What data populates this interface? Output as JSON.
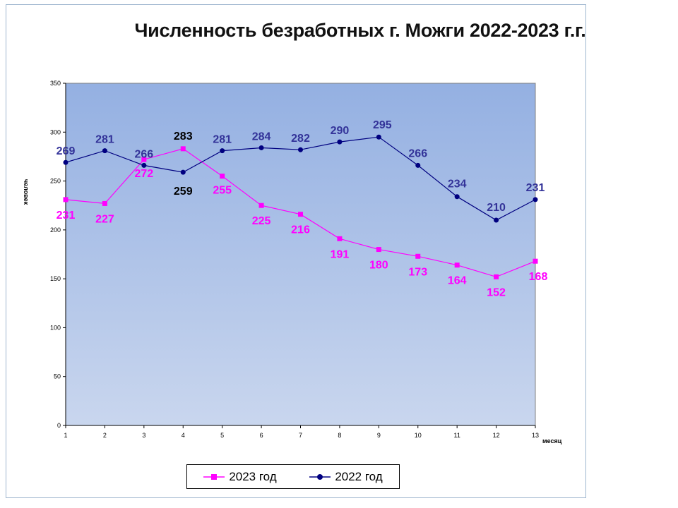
{
  "chart_data": {
    "type": "line",
    "title": "Численность безработных г. Можги  2022-2023 г.г.",
    "xlabel": "месяц",
    "ylabel": "человек",
    "x": [
      1,
      2,
      3,
      4,
      5,
      6,
      7,
      8,
      9,
      10,
      11,
      12,
      13
    ],
    "xlim": [
      1,
      13
    ],
    "ylim": [
      0,
      350
    ],
    "yticks": [
      0,
      50,
      100,
      150,
      200,
      250,
      300,
      350
    ],
    "grid": false,
    "legend_position": "bottom",
    "series": [
      {
        "name": "2023 год",
        "color": "#ff00ff",
        "marker": "square",
        "values": [
          231,
          227,
          272,
          283,
          255,
          225,
          216,
          191,
          180,
          173,
          164,
          152,
          168
        ]
      },
      {
        "name": "2022 год",
        "color": "#000080",
        "marker": "circle",
        "values": [
          269,
          281,
          266,
          259,
          281,
          284,
          282,
          290,
          295,
          266,
          234,
          210,
          231
        ]
      }
    ]
  }
}
